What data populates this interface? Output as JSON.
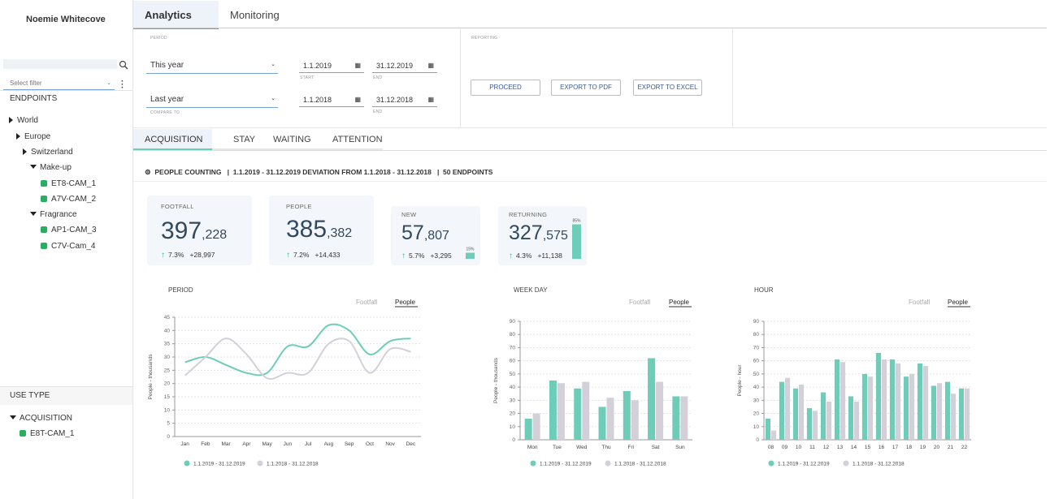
{
  "user": "Noemie Whitecove",
  "filter_placeholder": "Select filter",
  "endpoints": {
    "title": "ENDPOINTS",
    "nodes": [
      "World",
      "Europe",
      "Switzerland",
      "Make-up",
      "ET8-CAM_1",
      "A7V-CAM_2",
      "Fragrance",
      "AP1-CAM_3",
      "C7V-Cam_4"
    ]
  },
  "use_type": {
    "title": "USE TYPE",
    "group": "ACQUISITION",
    "item": "E8T-CAM_1"
  },
  "tabs": [
    "Analytics",
    "Monitoring"
  ],
  "period": {
    "title": "PERIOD",
    "current": {
      "preset": "This year",
      "start": "1.1.2019",
      "start_caption": "START",
      "end": "31.12.2019",
      "end_caption": "END"
    },
    "compare": {
      "preset": "Last year",
      "start": "1.1.2018",
      "start_caption": "COMPARE TO",
      "end": "31.12.2018",
      "end_caption": "END"
    }
  },
  "reporting": {
    "title": "REPORTING",
    "buttons": [
      "PROCEED",
      "EXPORT TO PDF",
      "EXPORT TO EXCEL"
    ]
  },
  "subtabs": [
    "ACQUISITION",
    "STAY",
    "WAITING",
    "ATTENTION"
  ],
  "summary": {
    "title": "PEOPLE COUNTING",
    "range": "1.1.2019 - 31.12.2019 DEVIATION FROM 1.1.2018 - 31.12.2018",
    "endpoints": "50 ENDPOINTS"
  },
  "kpis": [
    {
      "label": "FOOTFALL",
      "main": "397",
      "rest": ",228",
      "change": "7.3%",
      "delta": "+28,997"
    },
    {
      "label": "PEOPLE",
      "main": "385",
      "rest": ",382",
      "change": "7.2%",
      "delta": "+14,433"
    },
    {
      "label": "NEW",
      "main": "57",
      "rest": ",807",
      "change": "5.7%",
      "delta": "+3,295",
      "bar": {
        "value": 15,
        "label": "15%"
      }
    },
    {
      "label": "RETURNING",
      "main": "327",
      "rest": ",575",
      "change": "4.3%",
      "delta": "+11,138",
      "bar": {
        "value": 85,
        "label": "85%"
      }
    }
  ],
  "chart_data": [
    {
      "type": "line",
      "title": "PERIOD",
      "toggles": [
        "Footfall",
        "People"
      ],
      "active_toggle": 1,
      "ylabel": "People - thousands",
      "categories": [
        "Jan",
        "Feb",
        "Mar",
        "Apr",
        "May",
        "Jun",
        "Jul",
        "Aug",
        "Sep",
        "Oct",
        "Nov",
        "Dec"
      ],
      "series": [
        {
          "name": "1.1.2019 - 31.12.2019",
          "color": "#6dcdb8",
          "values": [
            28,
            30,
            27,
            24,
            24,
            34,
            34,
            42,
            40,
            31,
            36,
            37
          ]
        },
        {
          "name": "1.1.2018 - 31.12.2018",
          "color": "#d3d0da",
          "values": [
            23,
            30,
            37,
            31,
            22,
            24,
            24,
            35,
            36,
            24,
            33,
            32
          ]
        }
      ],
      "ylim": [
        0,
        45
      ],
      "yticks": [
        0,
        5,
        10,
        15,
        20,
        25,
        30,
        35,
        40,
        45
      ],
      "grid": true
    },
    {
      "type": "bar",
      "title": "WEEK DAY",
      "toggles": [
        "Footfall",
        "People"
      ],
      "active_toggle": 1,
      "ylabel": "People - thousands",
      "categories": [
        "Mon",
        "Tue",
        "Wed",
        "Thu",
        "Fri",
        "Sat",
        "Sun"
      ],
      "series": [
        {
          "name": "1.1.2019 - 31.12.2019",
          "color": "#6dcdb8",
          "values": [
            16,
            45,
            39,
            25,
            37,
            62,
            33
          ]
        },
        {
          "name": "1.1.2018 - 31.12.2018",
          "color": "#d3d0da",
          "values": [
            20,
            43,
            44,
            32,
            30,
            44,
            33
          ]
        }
      ],
      "ylim": [
        0,
        90
      ],
      "yticks": [
        0,
        10,
        20,
        30,
        40,
        50,
        60,
        70,
        80,
        90
      ],
      "grid": true
    },
    {
      "type": "bar",
      "title": "HOUR",
      "toggles": [
        "Footfall",
        "People"
      ],
      "active_toggle": 1,
      "ylabel": "People - hour",
      "categories": [
        "08",
        "09",
        "10",
        "11",
        "12",
        "13",
        "14",
        "15",
        "16",
        "17",
        "18",
        "19",
        "20",
        "21",
        "22"
      ],
      "series": [
        {
          "name": "1.1.2019 - 31.12.2019",
          "color": "#6dcdb8",
          "values": [
            16,
            44,
            39,
            24,
            36,
            61,
            33,
            50,
            66,
            61,
            48,
            58,
            41,
            44,
            39
          ]
        },
        {
          "name": "1.1.2018 - 31.12.2018",
          "color": "#d3d0da",
          "values": [
            7,
            47,
            42,
            22,
            29,
            59,
            29,
            48,
            61,
            58,
            50,
            56,
            43,
            35,
            39
          ]
        }
      ],
      "ylim": [
        0,
        90
      ],
      "yticks": [
        0,
        10,
        20,
        30,
        40,
        50,
        60,
        70,
        80,
        90
      ],
      "grid": true
    }
  ]
}
